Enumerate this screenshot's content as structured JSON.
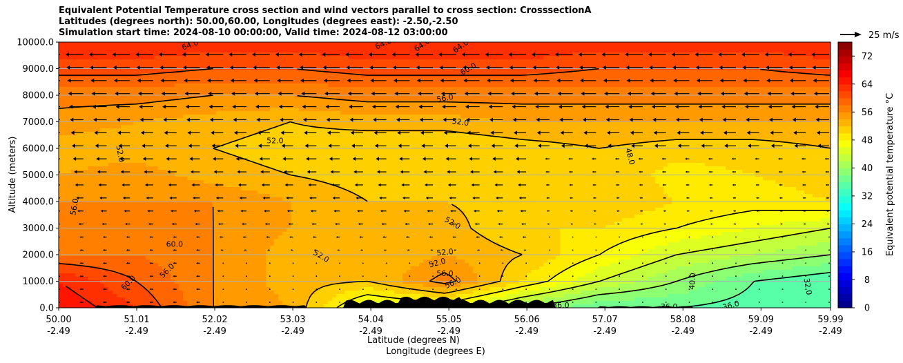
{
  "title_lines": [
    "Equivalent Potential Temperature cross section and wind vectors parallel to cross section: CrosssectionA",
    "Latitudes (degrees north): 50.00,60.00, Longitudes (degrees east): -2.50,-2.50",
    "Simulation start time: 2024-08-10 00:00:00, Valid time: 2024-08-12 03:00:00"
  ],
  "chart_data": {
    "type": "heatmap",
    "title": "Equivalent Potential Temperature cross section and wind vectors parallel to cross section: CrosssectionA",
    "xlabel_lines": [
      "Latitude (degrees N)",
      "Longitude (degrees E)"
    ],
    "ylabel": "Altitude (meters)",
    "x_ticks": [
      {
        "lat": "50.00",
        "lon": "-2.49"
      },
      {
        "lat": "51.01",
        "lon": "-2.49"
      },
      {
        "lat": "52.02",
        "lon": "-2.49"
      },
      {
        "lat": "53.03",
        "lon": "-2.49"
      },
      {
        "lat": "54.04",
        "lon": "-2.49"
      },
      {
        "lat": "55.05",
        "lon": "-2.49"
      },
      {
        "lat": "56.06",
        "lon": "-2.49"
      },
      {
        "lat": "57.07",
        "lon": "-2.49"
      },
      {
        "lat": "58.08",
        "lon": "-2.49"
      },
      {
        "lat": "59.09",
        "lon": "-2.49"
      },
      {
        "lat": "59.99",
        "lon": "-2.49"
      }
    ],
    "xlim": [
      50.0,
      59.99
    ],
    "y_ticks": [
      "0.0",
      "1000.0",
      "2000.0",
      "3000.0",
      "4000.0",
      "5000.0",
      "6000.0",
      "7000.0",
      "8000.0",
      "9000.0",
      "10000.0"
    ],
    "ylim": [
      0,
      10000
    ],
    "grid": "horizontal",
    "colorbar": {
      "label": "Equivalent potential temperature °C",
      "ticks": [
        "0",
        "8",
        "16",
        "24",
        "32",
        "40",
        "48",
        "56",
        "64",
        "72"
      ],
      "range": [
        0,
        76
      ],
      "colormap": "jet"
    },
    "quiver_key": "25 m/s",
    "wind_direction": "mostly northward-to-southward (leftward arrows aloft)",
    "contour_labels": [
      "64.0",
      "64.0",
      "64.0",
      "64.0",
      "60.0",
      "56.0",
      "52.0",
      "52.0",
      "52.0",
      "48.0",
      "56.0",
      "52.0",
      "60.0",
      "56.0",
      "60.0",
      "52.0",
      "52.0",
      "52.0",
      "56.0",
      "56.0",
      "40.0",
      "36.0",
      "36.0",
      "36.0",
      "32.0"
    ],
    "theta_e_field": {
      "rows_altitude_m": [
        0,
        1000,
        2000,
        3000,
        4000,
        5000,
        6000,
        7000,
        8000,
        9000,
        10000
      ],
      "cols_lat": [
        50.0,
        51.0,
        52.0,
        53.0,
        54.0,
        55.0,
        56.0,
        57.0,
        58.0,
        59.0,
        60.0
      ],
      "values": [
        [
          66,
          62,
          56,
          54,
          44,
          46,
          40,
          36,
          36,
          35,
          36
        ],
        [
          64,
          60,
          56,
          53,
          52,
          57,
          50,
          44,
          40,
          36,
          34
        ],
        [
          58,
          58,
          56,
          53,
          52,
          54,
          52,
          48,
          44,
          42,
          40
        ],
        [
          57,
          58,
          56,
          54,
          53,
          53,
          50,
          50,
          48,
          46,
          44
        ],
        [
          56,
          56,
          56,
          54,
          52,
          52,
          51,
          52,
          50,
          49,
          50
        ],
        [
          54,
          55,
          53,
          52,
          51,
          51,
          51,
          52,
          49,
          50,
          51
        ],
        [
          53,
          53,
          52,
          51,
          50,
          50,
          51,
          52,
          51,
          51,
          52
        ],
        [
          55,
          54,
          53,
          52,
          53,
          53,
          54,
          54,
          54,
          54,
          54
        ],
        [
          57,
          57,
          56,
          56,
          57,
          57,
          57,
          57,
          57,
          57,
          57
        ],
        [
          61,
          61,
          60,
          60,
          61,
          61,
          61,
          60,
          60,
          60,
          61
        ],
        [
          64,
          64,
          63,
          63,
          64,
          64,
          64,
          63,
          63,
          63,
          64
        ]
      ]
    }
  }
}
